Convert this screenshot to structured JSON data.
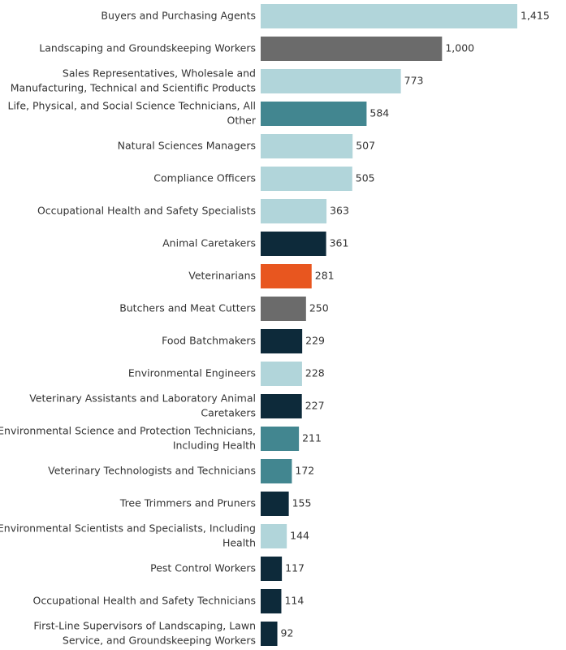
{
  "chart_data": {
    "type": "bar",
    "orientation": "horizontal",
    "categories": [
      [
        "Buyers and Purchasing Agents"
      ],
      [
        "Landscaping and Groundskeeping Workers"
      ],
      [
        "Sales Representatives, Wholesale and",
        "Manufacturing, Technical and Scientific Products"
      ],
      [
        "Life, Physical, and Social Science Technicians, All",
        "Other"
      ],
      [
        "Natural Sciences Managers"
      ],
      [
        "Compliance Officers"
      ],
      [
        "Occupational Health and Safety Specialists"
      ],
      [
        "Animal Caretakers"
      ],
      [
        "Veterinarians"
      ],
      [
        "Butchers and Meat Cutters"
      ],
      [
        "Food Batchmakers"
      ],
      [
        "Environmental Engineers"
      ],
      [
        "Veterinary Assistants and Laboratory Animal",
        "Caretakers"
      ],
      [
        "Environmental Science and Protection Technicians,",
        "Including Health"
      ],
      [
        "Veterinary Technologists and Technicians"
      ],
      [
        "Tree Trimmers and Pruners"
      ],
      [
        "Environmental Scientists and Specialists, Including",
        "Health"
      ],
      [
        "Pest Control Workers"
      ],
      [
        "Occupational Health and Safety Technicians"
      ],
      [
        "First-Line Supervisors of Landscaping, Lawn",
        "Service, and Groundskeeping Workers"
      ]
    ],
    "values": [
      1415,
      1000,
      773,
      584,
      507,
      505,
      363,
      361,
      281,
      250,
      229,
      228,
      227,
      211,
      172,
      155,
      144,
      117,
      114,
      92
    ],
    "value_labels": [
      "1,415",
      "1,000",
      "773",
      "584",
      "507",
      "505",
      "363",
      "361",
      "281",
      "250",
      "229",
      "228",
      "227",
      "211",
      "172",
      "155",
      "144",
      "117",
      "114",
      "92"
    ],
    "color_groups": [
      "light",
      "gray",
      "light",
      "teal",
      "light",
      "light",
      "light",
      "navy",
      "orange",
      "gray",
      "navy",
      "light",
      "navy",
      "teal",
      "teal",
      "navy",
      "light",
      "navy",
      "navy",
      "navy"
    ],
    "colors": {
      "light": "#b1d5da",
      "gray": "#6b6b6b",
      "teal": "#428690",
      "navy": "#0d2a3a",
      "orange": "#e8561f"
    },
    "xlim": [
      0,
      1415
    ],
    "title": "",
    "xlabel": "",
    "ylabel": ""
  }
}
